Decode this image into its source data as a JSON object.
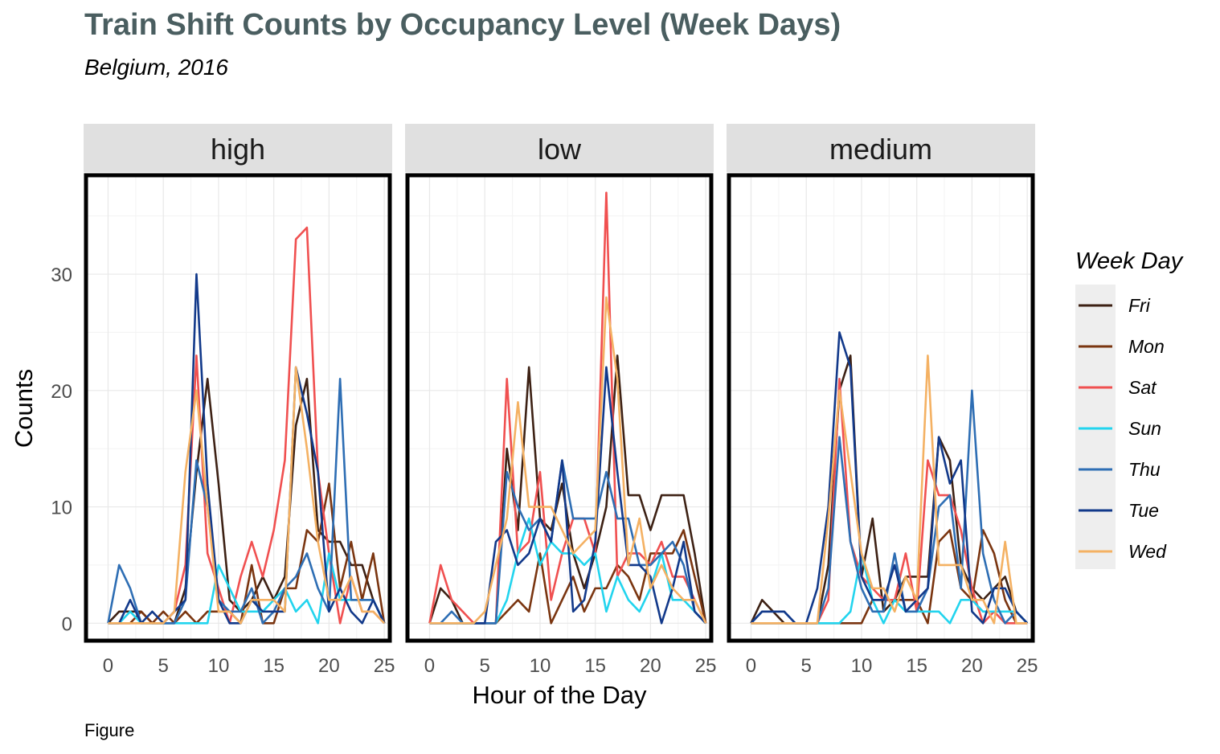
{
  "chart_data": {
    "type": "line",
    "title": "Train Shift Counts by Occupancy Level (Week Days)",
    "subtitle": "Belgium, 2016",
    "caption": "Figure",
    "xlabel": "Hour of the Day",
    "ylabel": "Counts",
    "xlim": [
      -2,
      25.5
    ],
    "ylim": [
      -1.5,
      38.5
    ],
    "xticks": [
      0,
      5,
      10,
      15,
      20,
      25
    ],
    "yticks": [
      0,
      10,
      20,
      30
    ],
    "grid": true,
    "legend": {
      "title": "Week Day",
      "position": "right",
      "items": [
        {
          "name": "Fri",
          "color": "#3d2114"
        },
        {
          "name": "Mon",
          "color": "#7a3510"
        },
        {
          "name": "Sat",
          "color": "#f05050"
        },
        {
          "name": "Sun",
          "color": "#22d4ee"
        },
        {
          "name": "Thu",
          "color": "#2e6eb4"
        },
        {
          "name": "Tue",
          "color": "#12398a"
        },
        {
          "name": "Wed",
          "color": "#f4b163"
        }
      ]
    },
    "panels": [
      {
        "label": "high",
        "series": [
          {
            "name": "Fri",
            "values": [
              0,
              1,
              1,
              1,
              0,
              0,
              0,
              3,
              13,
              21,
              12,
              2,
              1,
              2,
              4,
              2,
              4,
              17,
              21,
              8,
              7,
              7,
              5,
              5,
              2,
              0
            ]
          },
          {
            "name": "Mon",
            "values": [
              0,
              0,
              0,
              1,
              0,
              1,
              0,
              1,
              0,
              1,
              1,
              1,
              0,
              5,
              0,
              0,
              3,
              3,
              8,
              7,
              12,
              3,
              7,
              2,
              6,
              0
            ]
          },
          {
            "name": "Sat",
            "values": [
              0,
              0,
              0,
              0,
              0,
              0,
              1,
              5,
              23,
              6,
              3,
              0,
              4,
              7,
              4,
              8,
              14,
              33,
              34,
              13,
              6,
              0,
              4,
              1,
              1,
              0
            ]
          },
          {
            "name": "Sun",
            "values": [
              0,
              0,
              1,
              0,
              0,
              0,
              0,
              0,
              0,
              0,
              5,
              3,
              1,
              1,
              1,
              2,
              3,
              1,
              2,
              0,
              6,
              2,
              2,
              2,
              2,
              0
            ]
          },
          {
            "name": "Thu",
            "values": [
              0,
              5,
              3,
              0,
              0,
              0,
              0,
              2,
              14,
              10,
              2,
              1,
              1,
              3,
              0,
              1,
              3,
              4,
              6,
              3,
              1,
              21,
              2,
              2,
              2,
              0
            ]
          },
          {
            "name": "Tue",
            "values": [
              0,
              0,
              2,
              0,
              1,
              0,
              1,
              2,
              30,
              12,
              2,
              0,
              0,
              2,
              1,
              1,
              1,
              22,
              18,
              13,
              1,
              3,
              1,
              0,
              2,
              0
            ]
          },
          {
            "name": "Wed",
            "values": [
              0,
              0,
              0,
              0,
              0,
              0,
              1,
              13,
              20,
              10,
              1,
              1,
              0,
              2,
              2,
              2,
              1,
              22,
              15,
              7,
              2,
              2,
              4,
              1,
              1,
              0
            ]
          }
        ]
      },
      {
        "label": "low",
        "series": [
          {
            "name": "Fri",
            "values": [
              0,
              3,
              2,
              0,
              0,
              0,
              0,
              15,
              8,
              22,
              9,
              8,
              12,
              6,
              3,
              6,
              10,
              23,
              11,
              11,
              8,
              11,
              11,
              11,
              6,
              0
            ]
          },
          {
            "name": "Mon",
            "values": [
              0,
              0,
              0,
              0,
              0,
              0,
              0,
              1,
              2,
              1,
              6,
              0,
              2,
              4,
              1,
              3,
              3,
              5,
              4,
              2,
              6,
              6,
              6,
              8,
              4,
              0
            ]
          },
          {
            "name": "Sat",
            "values": [
              0,
              5,
              2,
              1,
              0,
              0,
              0,
              21,
              6,
              7,
              13,
              2,
              6,
              9,
              9,
              6,
              37,
              4,
              6,
              6,
              5,
              7,
              4,
              4,
              2,
              0
            ]
          },
          {
            "name": "Sun",
            "values": [
              0,
              0,
              0,
              0,
              0,
              0,
              0,
              2,
              6,
              9,
              5,
              7,
              6,
              6,
              5,
              6,
              1,
              4,
              2,
              1,
              3,
              6,
              2,
              2,
              1,
              0
            ]
          },
          {
            "name": "Thu",
            "values": [
              0,
              0,
              1,
              0,
              0,
              0,
              0,
              13,
              10,
              8,
              9,
              7,
              14,
              9,
              9,
              9,
              13,
              9,
              9,
              5,
              5,
              6,
              7,
              5,
              1,
              0
            ]
          },
          {
            "name": "Tue",
            "values": [
              0,
              0,
              0,
              0,
              0,
              0,
              7,
              8,
              5,
              6,
              9,
              7,
              14,
              1,
              2,
              7,
              22,
              13,
              5,
              5,
              4,
              0,
              3,
              7,
              1,
              0
            ]
          },
          {
            "name": "Wed",
            "values": [
              0,
              0,
              0,
              0,
              0,
              1,
              5,
              9,
              19,
              10,
              10,
              10,
              8,
              6,
              7,
              8,
              28,
              21,
              5,
              9,
              3,
              5,
              3,
              2,
              2,
              0
            ]
          }
        ]
      },
      {
        "label": "medium",
        "series": [
          {
            "name": "Fri",
            "values": [
              0,
              2,
              1,
              0,
              0,
              0,
              0,
              5,
              20,
              23,
              4,
              9,
              1,
              2,
              4,
              4,
              4,
              16,
              14,
              5,
              3,
              2,
              3,
              4,
              1,
              0
            ]
          },
          {
            "name": "Mon",
            "values": [
              0,
              0,
              0,
              0,
              0,
              0,
              0,
              0,
              0,
              0,
              0,
              2,
              2,
              2,
              2,
              2,
              0,
              7,
              8,
              3,
              2,
              8,
              6,
              2,
              0,
              0
            ]
          },
          {
            "name": "Sat",
            "values": [
              0,
              0,
              0,
              0,
              0,
              0,
              0,
              2,
              21,
              7,
              4,
              3,
              2,
              2,
              6,
              1,
              14,
              11,
              11,
              8,
              3,
              0,
              1,
              0,
              0,
              0
            ]
          },
          {
            "name": "Sun",
            "values": [
              0,
              0,
              0,
              0,
              0,
              0,
              0,
              0,
              0,
              1,
              6,
              2,
              0,
              2,
              1,
              1,
              1,
              1,
              0,
              2,
              2,
              1,
              1,
              1,
              1,
              0
            ]
          },
          {
            "name": "Thu",
            "values": [
              0,
              1,
              1,
              1,
              0,
              0,
              0,
              3,
              16,
              7,
              3,
              1,
              1,
              6,
              1,
              1,
              3,
              10,
              11,
              3,
              20,
              6,
              2,
              0,
              1,
              0
            ]
          },
          {
            "name": "Tue",
            "values": [
              0,
              1,
              1,
              1,
              0,
              0,
              3,
              10,
              25,
              22,
              4,
              2,
              2,
              5,
              1,
              2,
              3,
              16,
              12,
              14,
              1,
              0,
              3,
              3,
              1,
              0
            ]
          },
          {
            "name": "Wed",
            "values": [
              0,
              0,
              0,
              0,
              0,
              0,
              0,
              9,
              20,
              13,
              6,
              3,
              3,
              1,
              4,
              2,
              23,
              5,
              5,
              5,
              2,
              2,
              0,
              7,
              0,
              0
            ]
          }
        ]
      }
    ]
  }
}
